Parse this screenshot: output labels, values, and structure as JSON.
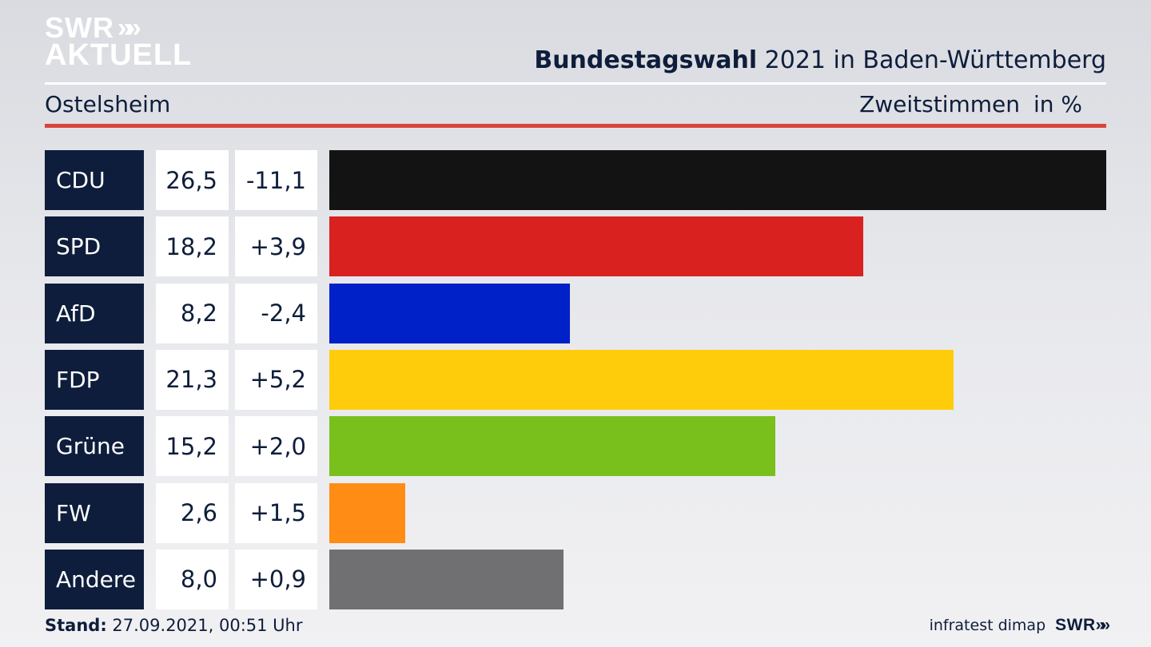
{
  "header": {
    "logo_line1": "SWR",
    "logo_line2": "AKTUELL",
    "title_bold": "Bundestagswahl",
    "title_rest": " 2021 in Baden-Württemberg",
    "subtitle": "Ostelsheim",
    "measure": "Zweitstimmen",
    "unit": "in %"
  },
  "footer": {
    "stand_label": "Stand:",
    "stand_value": " 27.09.2021, 00:51 Uhr",
    "source": "infratest dimap",
    "logo": "SWR"
  },
  "chart_data": {
    "type": "bar",
    "orientation": "horizontal",
    "categories": [
      "CDU",
      "SPD",
      "AfD",
      "FDP",
      "Grüne",
      "FW",
      "Andere"
    ],
    "values": [
      26.5,
      18.2,
      8.2,
      21.3,
      15.2,
      2.6,
      8.0
    ],
    "value_labels": [
      "26,5",
      "18,2",
      "8,2",
      "21,3",
      "15,2",
      "2,6",
      "8,0"
    ],
    "diff_labels": [
      "-11,1",
      "+3,9",
      "-2,4",
      "+5,2",
      "+2,0",
      "+1,5",
      "+0,9"
    ],
    "colors": [
      "#131313",
      "#d92120",
      "#0020c8",
      "#fecc0a",
      "#7ac01d",
      "#ff8c14",
      "#707073"
    ],
    "xlim": [
      0,
      26.5
    ],
    "title": "Bundestagswahl 2021 in Baden-Württemberg",
    "subtitle": "Ostelsheim",
    "grid": false
  }
}
